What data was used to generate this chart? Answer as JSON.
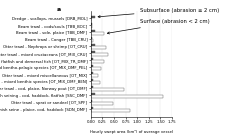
{
  "categories": [
    "Dredge - scallops, mussels [DRB_MOL]",
    "Beam trawl - cods/souls [TBB_BOC]",
    "Beam trawl - sole, plaice [TBB_DMF]",
    "Beam trawl - Conger [TBB_CRU]",
    "Otter trawl - Nephrops or shrimp [OT_CRU]",
    "Otter trawl - mixed crustaceans [OT_MIX_CRU]",
    "Otter trawl - mixed flatfish and demersal fish [OT_MIX_TR_DMF]",
    "Otter trawl - mixed bentho-pelagic species [OT_MIX_DMF_PEL]",
    "Otter trawl - mixed miscellaneous [OT_MIX]",
    "Otter trawl - mixed benthic species [OT_MIX_DMF_BEN]",
    "Otter trawl - cod, plaice, Norway pout [OT_DMF]",
    "Scottish seining - cod, haddock, flatfish [SSC_DMF]",
    "Otter trawl - sprat or sandeel [OT_SPF]",
    "Danish seine - plaice, cod, haddock [SDN_DMF]"
  ],
  "subsurface": [
    0.08,
    0.02,
    0.1,
    0.02,
    0.08,
    0.08,
    0.05,
    0.05,
    0.04,
    0.05,
    0.05,
    0.08,
    0.02,
    0.05
  ],
  "surface": [
    0.0,
    0.02,
    0.28,
    0.05,
    0.32,
    0.38,
    0.28,
    0.22,
    0.15,
    0.2,
    0.72,
    1.55,
    0.48,
    0.85
  ],
  "subsurface_color": "#555555",
  "surface_color": "#ffffff",
  "surface_edgecolor": "#555555",
  "xlabel": "Hourly swept area (km²) of average vessel",
  "xlim": [
    0,
    1.75
  ],
  "xticks": [
    0.0,
    0.25,
    0.5,
    0.75,
    1.0,
    1.25,
    1.5,
    1.75
  ],
  "xtick_labels": [
    "0.00",
    "0.25",
    "0.50",
    "0.75",
    "1.00",
    "1.25",
    "1.50",
    "1.75"
  ],
  "panel_label": "a",
  "annotation_subsurface": "Subsurface (abrasion ≥ 2 cm)",
  "annotation_surface": "Surface (abrasion < 2 cm)",
  "bar_height": 0.4,
  "fontsize_labels": 2.8,
  "fontsize_axis": 2.8,
  "fontsize_annot": 3.8,
  "fontsize_panel": 4.5
}
